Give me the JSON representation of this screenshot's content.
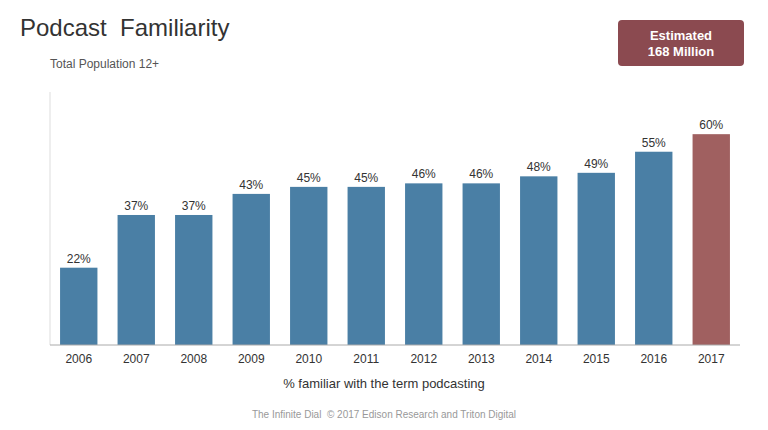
{
  "chart_data": {
    "type": "bar",
    "title": "Podcast  Familiarity",
    "categories": [
      "2006",
      "2007",
      "2008",
      "2009",
      "2010",
      "2011",
      "2012",
      "2013",
      "2014",
      "2015",
      "2016",
      "2017"
    ],
    "values": [
      22,
      37,
      37,
      43,
      45,
      45,
      46,
      46,
      48,
      49,
      55,
      60
    ],
    "value_labels": [
      "22%",
      "37%",
      "37%",
      "43%",
      "45%",
      "45%",
      "46%",
      "46%",
      "48%",
      "49%",
      "55%",
      "60%"
    ],
    "colors": [
      "#4a7fa5",
      "#4a7fa5",
      "#4a7fa5",
      "#4a7fa5",
      "#4a7fa5",
      "#4a7fa5",
      "#4a7fa5",
      "#4a7fa5",
      "#4a7fa5",
      "#4a7fa5",
      "#4a7fa5",
      "#a06060"
    ],
    "xlabel": "% familiar with the term podcasting",
    "annotations": [
      "Total Population 12+",
      "Estimated\n168 Million",
      "The Infinite Dial  © 2017 Edison Research and Triton Digital"
    ],
    "ylim": [
      0,
      72
    ],
    "yticks": [],
    "tick_labels": "x",
    "data_labels": true,
    "grid": false
  }
}
